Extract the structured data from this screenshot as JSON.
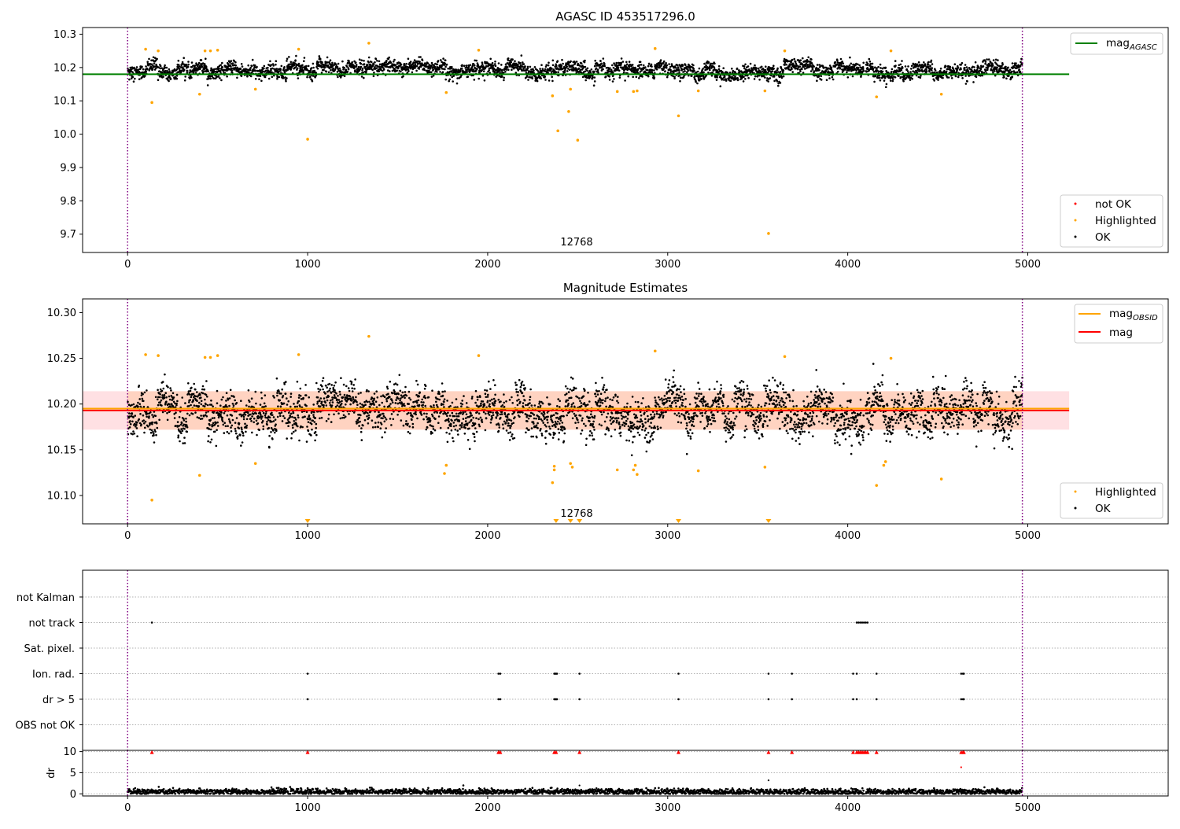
{
  "chart_data": [
    {
      "type": "scatter",
      "title": "AGASC ID 453517296.0",
      "xlim": [
        -250,
        5780
      ],
      "ylim": [
        9.645,
        10.32
      ],
      "xticks": [
        0,
        1000,
        2000,
        3000,
        4000,
        5000
      ],
      "xtick_labels": [
        "0",
        "1000",
        "2000",
        "3000",
        "4000",
        "5000"
      ],
      "yticks": [
        9.7,
        9.8,
        9.9,
        10.0,
        10.1,
        10.2,
        10.3
      ],
      "ytick_labels": [
        "9.7",
        "9.8",
        "9.9",
        "10.0",
        "10.1",
        "10.2",
        "10.3"
      ],
      "annotation": {
        "text": "12768",
        "x": 2500
      },
      "vlines": [
        0,
        4970
      ],
      "series": [
        {
          "name": "mag_AGASC",
          "kind": "hline",
          "y": 10.18,
          "x_range": [
            -250,
            5230
          ],
          "color": "#008000"
        },
        {
          "name": "not OK",
          "kind": "points",
          "color": "#ff0000",
          "points": []
        },
        {
          "name": "Highlighted",
          "kind": "points",
          "color": "#ffa500",
          "points": [
            [
              100,
              10.255
            ],
            [
              135,
              10.095
            ],
            [
              170,
              10.25
            ],
            [
              400,
              10.12
            ],
            [
              430,
              10.25
            ],
            [
              460,
              10.25
            ],
            [
              500,
              10.252
            ],
            [
              710,
              10.135
            ],
            [
              950,
              10.255
            ],
            [
              1000,
              9.985
            ],
            [
              1340,
              10.273
            ],
            [
              1770,
              10.125
            ],
            [
              1950,
              10.252
            ],
            [
              2360,
              10.115
            ],
            [
              2390,
              10.01
            ],
            [
              2450,
              10.068
            ],
            [
              2460,
              10.135
            ],
            [
              2500,
              9.982
            ],
            [
              2720,
              10.128
            ],
            [
              2810,
              10.128
            ],
            [
              2830,
              10.13
            ],
            [
              2930,
              10.257
            ],
            [
              3060,
              10.055
            ],
            [
              3170,
              10.13
            ],
            [
              3540,
              10.13
            ],
            [
              3560,
              9.702
            ],
            [
              3650,
              10.25
            ],
            [
              4160,
              10.112
            ],
            [
              4240,
              10.25
            ],
            [
              4520,
              10.12
            ]
          ]
        },
        {
          "name": "OK",
          "kind": "points",
          "color": "#000000",
          "base": 10.193,
          "spread": 0.02,
          "x_range": [
            0,
            4970
          ],
          "gaps": [
            [
              4090,
              4100
            ]
          ],
          "count": 3600
        }
      ],
      "legend": {
        "position": "upper-right / lower-right",
        "entries": [
          "mag_AGASC",
          "not OK",
          "Highlighted",
          "OK"
        ]
      }
    },
    {
      "type": "scatter",
      "title": "Magnitude Estimates",
      "xlim": [
        -250,
        5780
      ],
      "ylim": [
        10.069,
        10.315
      ],
      "xticks": [
        0,
        1000,
        2000,
        3000,
        4000,
        5000
      ],
      "xtick_labels": [
        "0",
        "1000",
        "2000",
        "3000",
        "4000",
        "5000"
      ],
      "yticks": [
        10.1,
        10.15,
        10.2,
        10.25,
        10.3
      ],
      "ytick_labels": [
        "10.10",
        "10.15",
        "10.20",
        "10.25",
        "10.30"
      ],
      "annotation": {
        "text": "12768",
        "x": 2500
      },
      "vlines": [
        0,
        4970
      ],
      "band": {
        "y_low": 10.172,
        "y_high": 10.214,
        "x_range": [
          -250,
          5230
        ],
        "color": "#ffaaaa"
      },
      "series": [
        {
          "name": "mag_OBSID",
          "kind": "hline",
          "y": 10.195,
          "x_range": [
            -250,
            5230
          ],
          "color": "#ffa500"
        },
        {
          "name": "mag",
          "kind": "hline",
          "y": 10.193,
          "x_range": [
            -250,
            5230
          ],
          "color": "#ff0000"
        },
        {
          "name": "Highlighted",
          "kind": "points",
          "color": "#ffa500",
          "points": [
            [
              100,
              10.254
            ],
            [
              135,
              10.095
            ],
            [
              170,
              10.253
            ],
            [
              400,
              10.122
            ],
            [
              430,
              10.251
            ],
            [
              460,
              10.251
            ],
            [
              500,
              10.253
            ],
            [
              710,
              10.135
            ],
            [
              950,
              10.254
            ],
            [
              1340,
              10.274
            ],
            [
              1760,
              10.124
            ],
            [
              1770,
              10.133
            ],
            [
              1950,
              10.253
            ],
            [
              2360,
              10.114
            ],
            [
              2370,
              10.128
            ],
            [
              2370,
              10.132
            ],
            [
              2460,
              10.135
            ],
            [
              2470,
              10.131
            ],
            [
              2720,
              10.128
            ],
            [
              2810,
              10.128
            ],
            [
              2820,
              10.133
            ],
            [
              2830,
              10.123
            ],
            [
              2930,
              10.258
            ],
            [
              3170,
              10.127
            ],
            [
              3540,
              10.131
            ],
            [
              3650,
              10.252
            ],
            [
              4160,
              10.111
            ],
            [
              4200,
              10.133
            ],
            [
              4210,
              10.137
            ],
            [
              4240,
              10.25
            ],
            [
              4520,
              10.118
            ]
          ],
          "clipped_low_x": [
            1000,
            2380,
            2460,
            2510,
            3060,
            3560
          ]
        },
        {
          "name": "OK",
          "kind": "points",
          "color": "#000000",
          "base": 10.193,
          "spread": 0.02,
          "x_range": [
            0,
            4970
          ],
          "gaps": [
            [
              4090,
              4100
            ]
          ],
          "count": 3600
        }
      ],
      "legend": {
        "position": "upper-right / lower-right",
        "entries": [
          "mag_OBSID",
          "mag",
          "Highlighted",
          "OK"
        ]
      }
    },
    {
      "type": "scatter",
      "title": "",
      "xlim": [
        -250,
        5780
      ],
      "categories": [
        "not Kalman",
        "not track",
        "Sat. pixel.",
        "Ion. rad.",
        "dr > 5",
        "OBS not OK"
      ],
      "vlines": [
        0,
        4970
      ],
      "flags": {
        "not Kalman": [],
        "not track": [
          135,
          4050,
          4060,
          4070,
          4080,
          4090,
          4100,
          4110
        ],
        "Sat. pixel.": [],
        "Ion. rad.": [
          1000,
          2060,
          2070,
          2370,
          2375,
          2380,
          2385,
          2510,
          3060,
          3560,
          3690,
          4030,
          4050,
          4160,
          4630,
          4640,
          4645
        ],
        "dr > 5": [
          1000,
          2060,
          2070,
          2370,
          2375,
          2380,
          2385,
          2510,
          3060,
          3560,
          3690,
          4030,
          4050,
          4160,
          4630,
          4640,
          4645
        ],
        "OBS not OK": []
      }
    },
    {
      "type": "scatter",
      "title": "",
      "ylabel": "dr",
      "xlim": [
        -250,
        5780
      ],
      "ylim": [
        -0.5,
        10.3
      ],
      "yticks": [
        0,
        5,
        10
      ],
      "ytick_labels": [
        "0",
        "5",
        "10"
      ],
      "xticks": [
        0,
        1000,
        2000,
        3000,
        4000,
        5000
      ],
      "xtick_labels": [
        "0",
        "1000",
        "2000",
        "3000",
        "4000",
        "5000"
      ],
      "vlines": [
        0,
        4970
      ],
      "series": [
        {
          "name": "dr",
          "kind": "points",
          "color": "#000000",
          "base": 0.5,
          "spread": 0.35,
          "x_range": [
            0,
            4970
          ],
          "gaps": [
            [
              4090,
              4100
            ]
          ],
          "count": 2500,
          "extra_points": [
            [
              2510,
              2.0
            ],
            [
              3560,
              3.2
            ],
            [
              4630,
              6.3
            ]
          ]
        },
        {
          "name": "dr clipped",
          "kind": "points",
          "color": "#ff0000",
          "clipped_high_x": [
            135,
            1000,
            2060,
            2070,
            2370,
            2380,
            2510,
            3060,
            3560,
            3690,
            4030,
            4050,
            4060,
            4070,
            4080,
            4090,
            4100,
            4110,
            4160,
            4630,
            4640,
            4645
          ]
        }
      ]
    }
  ]
}
